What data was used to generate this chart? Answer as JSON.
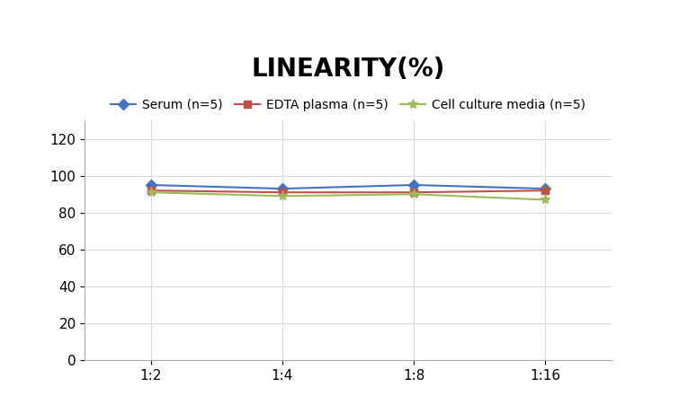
{
  "title": "LINEARITY(%)",
  "x_labels": [
    "1:2",
    "1:4",
    "1:8",
    "1:16"
  ],
  "x_positions": [
    0,
    1,
    2,
    3
  ],
  "series": [
    {
      "label": "Serum (n=5)",
      "values": [
        95,
        93,
        95,
        93
      ],
      "color": "#4472C4",
      "marker": "D",
      "markersize": 6,
      "linewidth": 1.5
    },
    {
      "label": "EDTA plasma (n=5)",
      "values": [
        92,
        91,
        91,
        92
      ],
      "color": "#C0504D",
      "marker": "s",
      "markersize": 6,
      "linewidth": 1.5
    },
    {
      "label": "Cell culture media (n=5)",
      "values": [
        91,
        89,
        90,
        87
      ],
      "color": "#9BBB59",
      "marker": "*",
      "markersize": 8,
      "linewidth": 1.5
    }
  ],
  "ylim": [
    0,
    130
  ],
  "yticks": [
    0,
    20,
    40,
    60,
    80,
    100,
    120
  ],
  "grid_color": "#D9D9D9",
  "background_color": "#FFFFFF",
  "title_fontsize": 20,
  "legend_fontsize": 10,
  "tick_fontsize": 11
}
